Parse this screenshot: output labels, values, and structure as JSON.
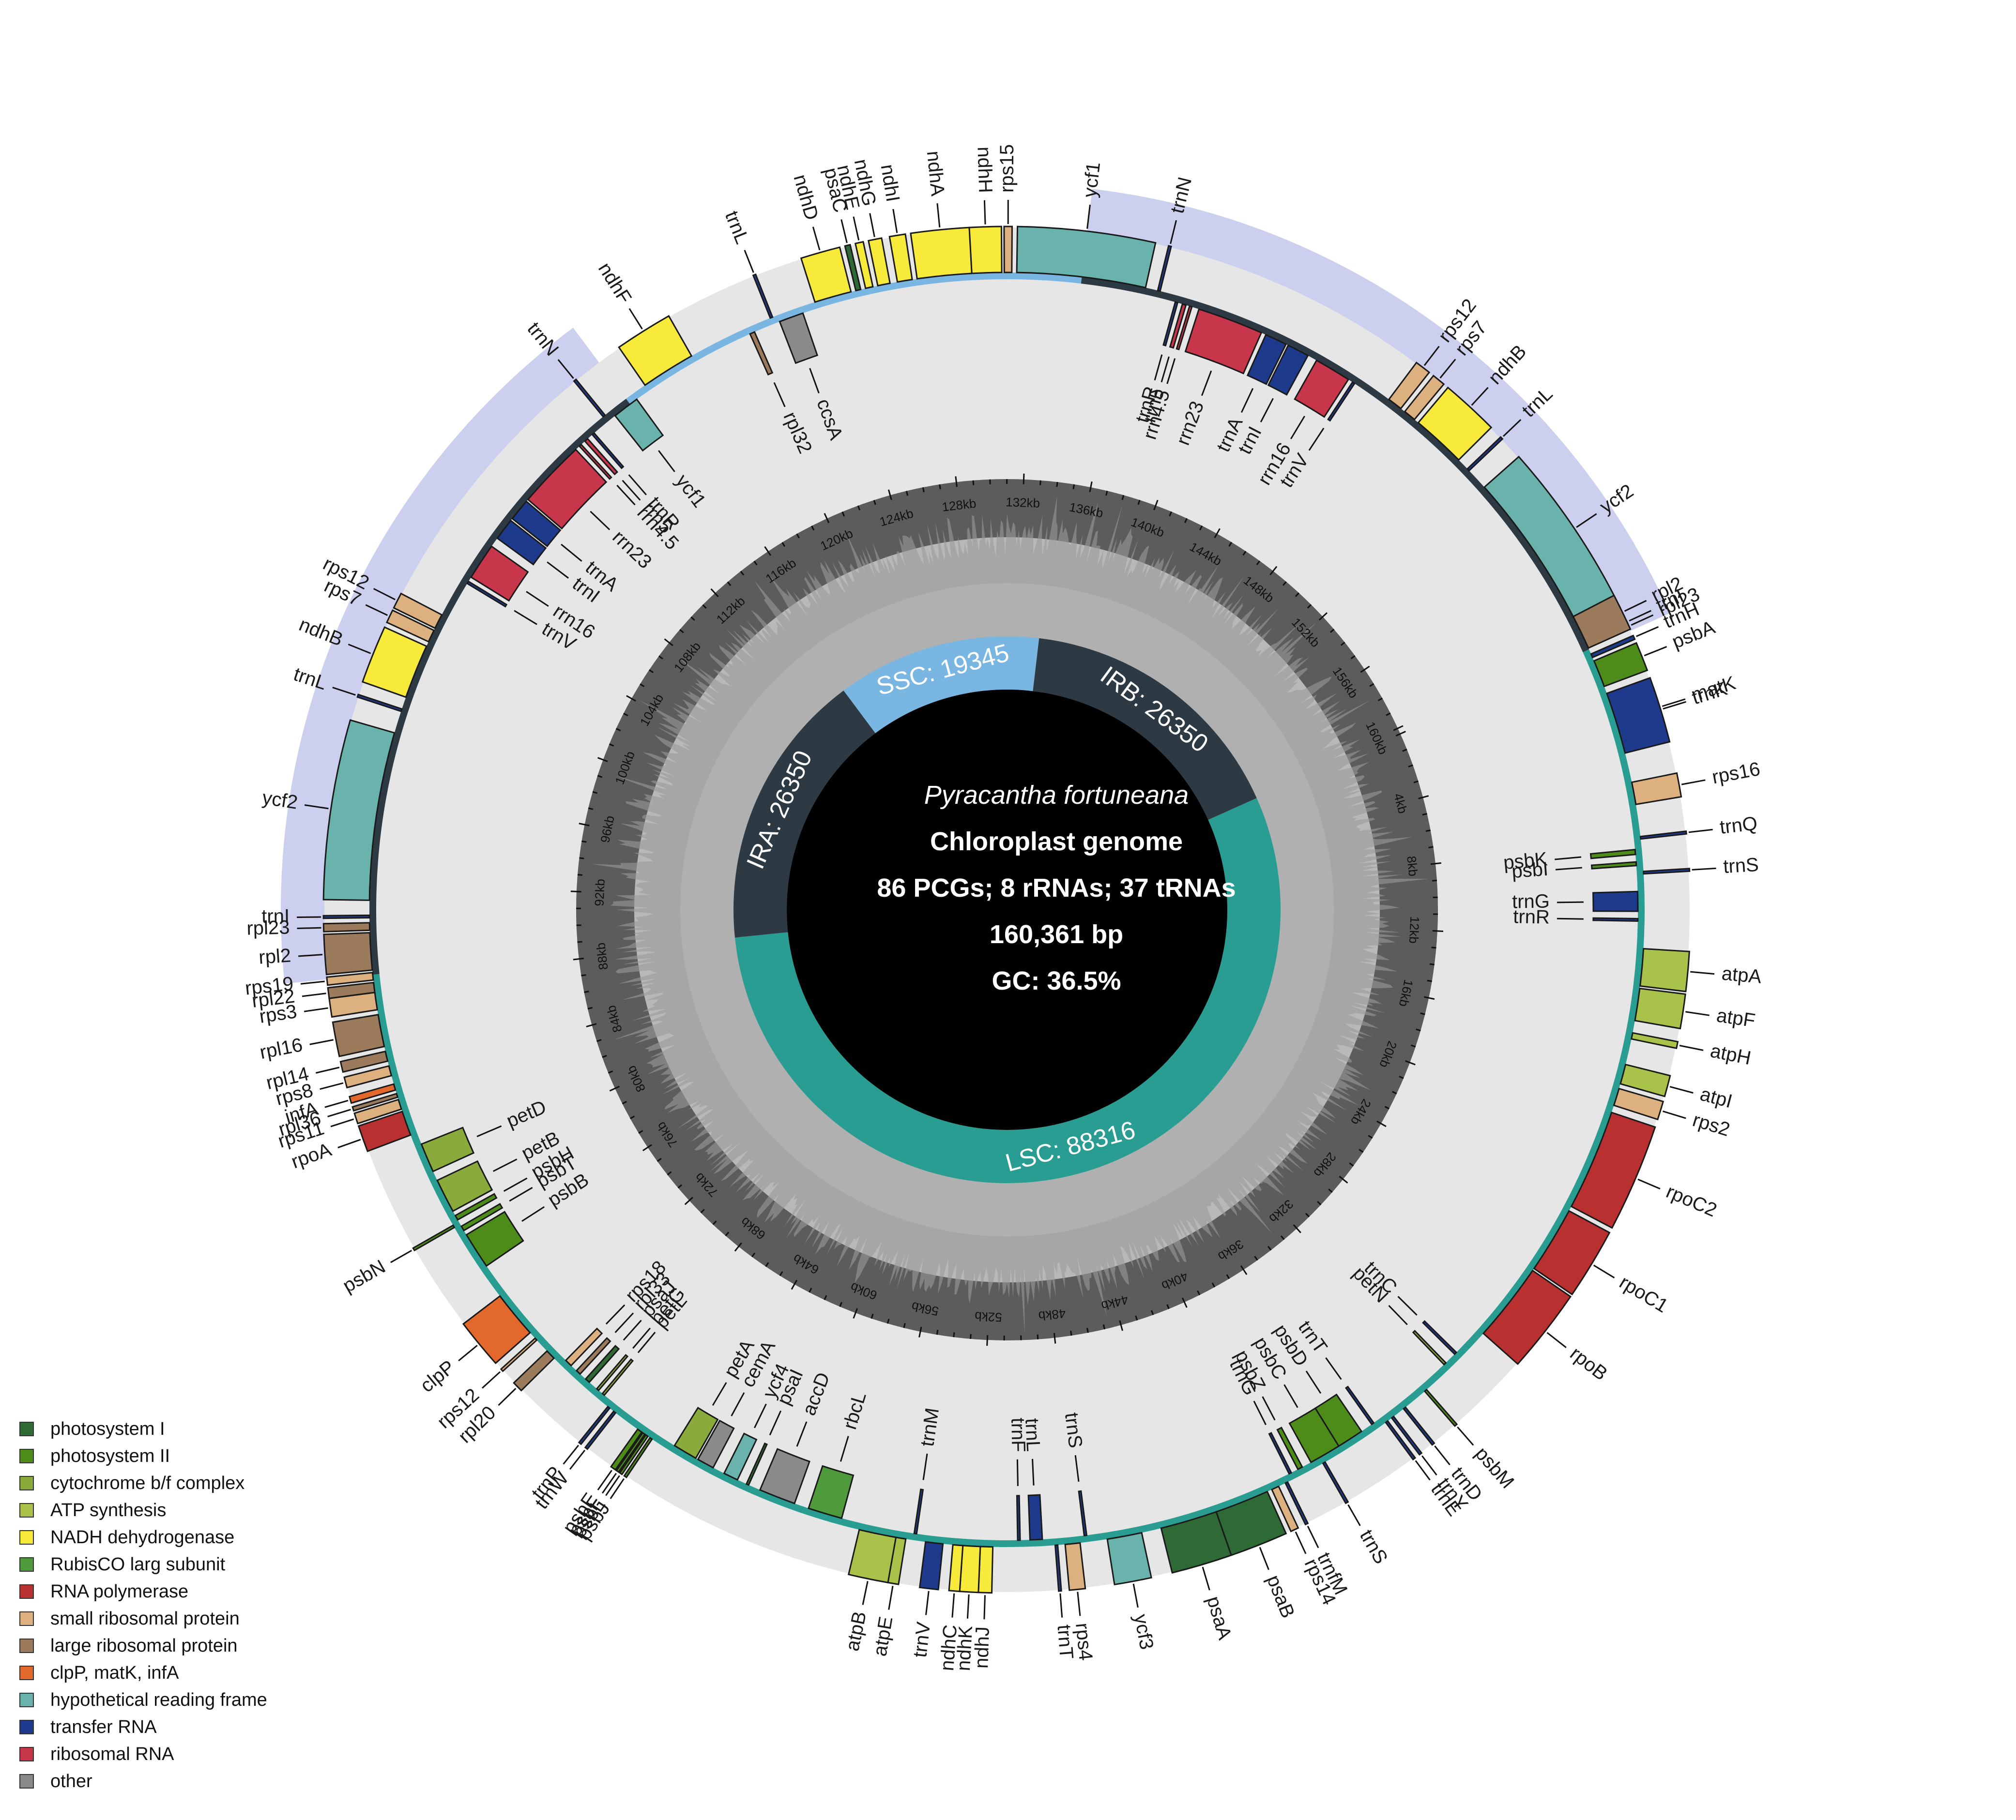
{
  "figure": {
    "species": "Pyracantha fortuneana",
    "genome_type": "Chloroplast genome",
    "gene_counts": "86 PCGs; 8 rRNAs; 37 tRNAs",
    "length": "160,361 bp",
    "gc": "GC: 36.5%"
  },
  "regions": [
    {
      "name": "LSC",
      "label": "LSC: 88316",
      "start": 0,
      "end": 88316,
      "color": "#2a9d93"
    },
    {
      "name": "IRA",
      "label": "IRA: 26350",
      "start": 88316,
      "end": 114666,
      "color": "#2d3a44"
    },
    {
      "name": "SSC",
      "label": "SSC: 19345",
      "start": 114666,
      "end": 134011,
      "color": "#7ab6e2"
    },
    {
      "name": "IRB",
      "label": "IRB: 26350",
      "start": 134011,
      "end": 160361,
      "color": "#2d3a44"
    }
  ],
  "ticks": [
    "4kb",
    "8kb",
    "12kb",
    "16kb",
    "20kb",
    "24kb",
    "28kb",
    "32kb",
    "36kb",
    "40kb",
    "44kb",
    "48kb",
    "52kb",
    "56kb",
    "60kb",
    "64kb",
    "68kb",
    "72kb",
    "76kb",
    "80kb",
    "84kb",
    "88kb",
    "92kb",
    "96kb",
    "100kb",
    "104kb",
    "108kb",
    "112kb",
    "116kb",
    "120kb",
    "124kb",
    "128kb",
    "132kb",
    "136kb",
    "140kb",
    "144kb",
    "148kb",
    "152kb",
    "156kb",
    "160kb"
  ],
  "genes": [
    {
      "name": "trnH",
      "start": 0.2,
      "end": 0.35,
      "cat": "transfer RNA",
      "side": "out"
    },
    {
      "name": "psbA",
      "start": 0.5,
      "end": 1.6,
      "cat": "photosystem II",
      "side": "out"
    },
    {
      "name": "matK",
      "start": 2.3,
      "end": 3.8,
      "cat": "clpP, matK, infA",
      "side": "out"
    },
    {
      "name": "trnK",
      "start": 1.9,
      "end": 4.4,
      "cat": "transfer RNA",
      "side": "out"
    },
    {
      "name": "rps16",
      "start": 5.6,
      "end": 6.5,
      "cat": "small ribosomal protein",
      "side": "out"
    },
    {
      "name": "trnQ",
      "start": 7.8,
      "end": 7.9,
      "cat": "transfer RNA",
      "side": "out"
    },
    {
      "name": "psbK",
      "start": 8.3,
      "end": 8.5,
      "cat": "photosystem II",
      "side": "in"
    },
    {
      "name": "psbI",
      "start": 8.8,
      "end": 8.95,
      "cat": "photosystem II",
      "side": "in"
    },
    {
      "name": "trnS",
      "start": 9.2,
      "end": 9.3,
      "cat": "transfer RNA",
      "side": "out"
    },
    {
      "name": "trnG",
      "start": 10.0,
      "end": 10.8,
      "cat": "transfer RNA",
      "side": "in"
    },
    {
      "name": "trnR",
      "start": 11.1,
      "end": 11.2,
      "cat": "transfer RNA",
      "side": "in"
    },
    {
      "name": "atpA",
      "start": 12.3,
      "end": 13.8,
      "cat": "ATP synthesis",
      "side": "out"
    },
    {
      "name": "atpF",
      "start": 13.9,
      "end": 15.2,
      "cat": "ATP synthesis",
      "side": "out"
    },
    {
      "name": "atpH",
      "start": 15.7,
      "end": 15.95,
      "cat": "ATP synthesis",
      "side": "out"
    },
    {
      "name": "atpI",
      "start": 17.0,
      "end": 17.8,
      "cat": "ATP synthesis",
      "side": "out"
    },
    {
      "name": "rps2",
      "start": 18.0,
      "end": 18.7,
      "cat": "small ribosomal protein",
      "side": "out"
    },
    {
      "name": "rpoC2",
      "start": 19.0,
      "end": 23.1,
      "cat": "RNA polymerase",
      "side": "out"
    },
    {
      "name": "rpoC1",
      "start": 23.3,
      "end": 26.0,
      "cat": "RNA polymerase",
      "side": "out"
    },
    {
      "name": "rpoB",
      "start": 26.1,
      "end": 29.3,
      "cat": "RNA polymerase",
      "side": "out"
    },
    {
      "name": "trnC",
      "start": 30.6,
      "end": 30.7,
      "cat": "transfer RNA",
      "side": "in"
    },
    {
      "name": "petN",
      "start": 31.2,
      "end": 31.3,
      "cat": "cytochrome b/f complex",
      "side": "in"
    },
    {
      "name": "psbM",
      "start": 32.5,
      "end": 32.6,
      "cat": "photosystem II",
      "side": "out"
    },
    {
      "name": "trnD",
      "start": 33.6,
      "end": 33.7,
      "cat": "transfer RNA",
      "side": "out"
    },
    {
      "name": "trnY",
      "start": 34.2,
      "end": 34.3,
      "cat": "transfer RNA",
      "side": "out"
    },
    {
      "name": "trnE",
      "start": 34.5,
      "end": 34.6,
      "cat": "transfer RNA",
      "side": "out"
    },
    {
      "name": "trnT",
      "start": 35.0,
      "end": 35.1,
      "cat": "transfer RNA",
      "side": "in"
    },
    {
      "name": "psbD",
      "start": 35.6,
      "end": 36.7,
      "cat": "photosystem II",
      "side": "in"
    },
    {
      "name": "psbC",
      "start": 36.7,
      "end": 38.0,
      "cat": "photosystem II",
      "side": "in"
    },
    {
      "name": "trnS",
      "start": 37.5,
      "end": 37.6,
      "cat": "transfer RNA",
      "side": "out"
    },
    {
      "name": "psbZ",
      "start": 38.4,
      "end": 38.6,
      "cat": "photosystem II",
      "side": "in"
    },
    {
      "name": "trnG",
      "start": 38.9,
      "end": 39.0,
      "cat": "transfer RNA",
      "side": "in"
    },
    {
      "name": "trnfM",
      "start": 39.2,
      "end": 39.3,
      "cat": "transfer RNA",
      "side": "out"
    },
    {
      "name": "rps14",
      "start": 39.6,
      "end": 39.9,
      "cat": "small ribosomal protein",
      "side": "out"
    },
    {
      "name": "psaB",
      "start": 40.1,
      "end": 42.3,
      "cat": "photosystem I",
      "side": "out"
    },
    {
      "name": "psaA",
      "start": 42.3,
      "end": 44.6,
      "cat": "photosystem I",
      "side": "out"
    },
    {
      "name": "ycf3",
      "start": 45.4,
      "end": 46.8,
      "cat": "hypothetical reading frame",
      "side": "out"
    },
    {
      "name": "trnS",
      "start": 47.6,
      "end": 47.7,
      "cat": "transfer RNA",
      "side": "in"
    },
    {
      "name": "rps4",
      "start": 47.9,
      "end": 48.5,
      "cat": "small ribosomal protein",
      "side": "out"
    },
    {
      "name": "trnT",
      "start": 48.8,
      "end": 48.9,
      "cat": "transfer RNA",
      "side": "out"
    },
    {
      "name": "trnL",
      "start": 49.4,
      "end": 49.9,
      "cat": "transfer RNA",
      "side": "in"
    },
    {
      "name": "trnF",
      "start": 50.3,
      "end": 50.4,
      "cat": "transfer RNA",
      "side": "in"
    },
    {
      "name": "ndhJ",
      "start": 51.4,
      "end": 51.9,
      "cat": "NADH dehydrogenase",
      "side": "out"
    },
    {
      "name": "ndhK",
      "start": 51.9,
      "end": 52.6,
      "cat": "NADH dehydrogenase",
      "side": "out"
    },
    {
      "name": "ndhC",
      "start": 52.6,
      "end": 53.0,
      "cat": "NADH dehydrogenase",
      "side": "out"
    },
    {
      "name": "trnV",
      "start": 53.4,
      "end": 54.1,
      "cat": "transfer RNA",
      "side": "out"
    },
    {
      "name": "trnM",
      "start": 54.5,
      "end": 54.6,
      "cat": "transfer RNA",
      "side": "in"
    },
    {
      "name": "atpE",
      "start": 54.9,
      "end": 55.3,
      "cat": "ATP synthesis",
      "side": "out"
    },
    {
      "name": "atpB",
      "start": 55.3,
      "end": 56.8,
      "cat": "ATP synthesis",
      "side": "out"
    },
    {
      "name": "rbcL",
      "start": 57.6,
      "end": 59.0,
      "cat": "RubisCO larg subunit",
      "side": "in"
    },
    {
      "name": "accD",
      "start": 59.6,
      "end": 61.1,
      "cat": "other",
      "side": "in"
    },
    {
      "name": "psaI",
      "start": 61.6,
      "end": 61.7,
      "cat": "photosystem I",
      "side": "in"
    },
    {
      "name": "ycf4",
      "start": 62.1,
      "end": 62.7,
      "cat": "hypothetical reading frame",
      "side": "in"
    },
    {
      "name": "cemA",
      "start": 63.2,
      "end": 63.9,
      "cat": "other",
      "side": "in"
    },
    {
      "name": "petA",
      "start": 64.0,
      "end": 65.0,
      "cat": "cytochrome b/f complex",
      "side": "in"
    },
    {
      "name": "psbJ",
      "start": 65.9,
      "end": 66.0,
      "cat": "photosystem II",
      "side": "out"
    },
    {
      "name": "psbL",
      "start": 66.1,
      "end": 66.2,
      "cat": "photosystem II",
      "side": "out"
    },
    {
      "name": "psbF",
      "start": 66.25,
      "end": 66.35,
      "cat": "photosystem II",
      "side": "out"
    },
    {
      "name": "psbE",
      "start": 66.4,
      "end": 66.6,
      "cat": "photosystem II",
      "side": "out"
    },
    {
      "name": "trnW",
      "start": 67.7,
      "end": 67.8,
      "cat": "transfer RNA",
      "side": "out"
    },
    {
      "name": "trnP",
      "start": 68.0,
      "end": 68.1,
      "cat": "transfer RNA",
      "side": "out"
    },
    {
      "name": "petL",
      "start": 68.5,
      "end": 68.6,
      "cat": "cytochrome b/f complex",
      "side": "in"
    },
    {
      "name": "petG",
      "start": 68.8,
      "end": 68.9,
      "cat": "cytochrome b/f complex",
      "side": "in"
    },
    {
      "name": "psaJ",
      "start": 69.3,
      "end": 69.5,
      "cat": "photosystem I",
      "side": "in"
    },
    {
      "name": "rpl33",
      "start": 69.8,
      "end": 70.0,
      "cat": "large ribosomal protein",
      "side": "in"
    },
    {
      "name": "rps18",
      "start": 70.3,
      "end": 70.6,
      "cat": "small ribosomal protein",
      "side": "in"
    },
    {
      "name": "rpl20",
      "start": 71.0,
      "end": 71.4,
      "cat": "large ribosomal protein",
      "side": "out"
    },
    {
      "name": "rps12",
      "start": 72.0,
      "end": 72.1,
      "cat": "small ribosomal protein",
      "side": "out"
    },
    {
      "name": "clpP",
      "start": 72.4,
      "end": 74.3,
      "cat": "clpP, matK, infA",
      "side": "out"
    },
    {
      "name": "psbB",
      "start": 75.6,
      "end": 77.1,
      "cat": "photosystem II",
      "side": "in"
    },
    {
      "name": "psbN",
      "start": 77.6,
      "end": 77.7,
      "cat": "photosystem II",
      "side": "out"
    },
    {
      "name": "psbT",
      "start": 77.3,
      "end": 77.5,
      "cat": "photosystem II",
      "side": "in"
    },
    {
      "name": "psbH",
      "start": 77.8,
      "end": 78.0,
      "cat": "photosystem II",
      "side": "in"
    },
    {
      "name": "petB",
      "start": 78.2,
      "end": 79.6,
      "cat": "cytochrome b/f complex",
      "side": "in"
    },
    {
      "name": "petD",
      "start": 80.0,
      "end": 81.2,
      "cat": "cytochrome b/f complex",
      "side": "in"
    },
    {
      "name": "rpoA",
      "start": 81.7,
      "end": 82.7,
      "cat": "RNA polymerase",
      "side": "out"
    },
    {
      "name": "rps11",
      "start": 82.8,
      "end": 83.2,
      "cat": "small ribosomal protein",
      "side": "out"
    },
    {
      "name": "rpl36",
      "start": 83.3,
      "end": 83.45,
      "cat": "large ribosomal protein",
      "side": "out"
    },
    {
      "name": "infA",
      "start": 83.6,
      "end": 83.85,
      "cat": "clpP, matK, infA",
      "side": "out"
    },
    {
      "name": "rps8",
      "start": 84.2,
      "end": 84.6,
      "cat": "small ribosomal protein",
      "side": "out"
    },
    {
      "name": "rpl14",
      "start": 84.8,
      "end": 85.2,
      "cat": "large ribosomal protein",
      "side": "out"
    },
    {
      "name": "rpl16",
      "start": 85.4,
      "end": 86.7,
      "cat": "large ribosomal protein",
      "side": "out"
    },
    {
      "name": "rps3",
      "start": 86.9,
      "end": 87.6,
      "cat": "small ribosomal protein",
      "side": "out"
    },
    {
      "name": "rpl22",
      "start": 87.6,
      "end": 88.0,
      "cat": "large ribosomal protein",
      "side": "out"
    },
    {
      "name": "rps19",
      "start": 88.1,
      "end": 88.4,
      "cat": "small ribosomal protein",
      "side": "out"
    },
    {
      "name": "rpl2",
      "start": 88.5,
      "end": 90.0,
      "cat": "large ribosomal protein",
      "side": "out"
    },
    {
      "name": "rpl23",
      "start": 90.1,
      "end": 90.4,
      "cat": "large ribosomal protein",
      "side": "out"
    },
    {
      "name": "trnI",
      "start": 90.6,
      "end": 90.7,
      "cat": "transfer RNA",
      "side": "out"
    },
    {
      "name": "ycf2",
      "start": 91.3,
      "end": 98.1,
      "cat": "hypothetical reading frame",
      "side": "out"
    },
    {
      "name": "trnL",
      "start": 99.0,
      "end": 99.1,
      "cat": "transfer RNA",
      "side": "out"
    },
    {
      "name": "ndhB",
      "start": 99.6,
      "end": 101.8,
      "cat": "NADH dehydrogenase",
      "side": "out"
    },
    {
      "name": "rps7",
      "start": 102.0,
      "end": 102.5,
      "cat": "small ribosomal protein",
      "side": "out"
    },
    {
      "name": "rps12",
      "start": 102.6,
      "end": 103.2,
      "cat": "small ribosomal protein",
      "side": "out"
    },
    {
      "name": "trnV",
      "start": 104.8,
      "end": 104.9,
      "cat": "transfer RNA",
      "side": "in"
    },
    {
      "name": "rrn16",
      "start": 105.1,
      "end": 106.6,
      "cat": "ribosomal RNA",
      "side": "in"
    },
    {
      "name": "trnI",
      "start": 107.0,
      "end": 107.9,
      "cat": "transfer RNA",
      "side": "in"
    },
    {
      "name": "trnA",
      "start": 108.0,
      "end": 108.9,
      "cat": "transfer RNA",
      "side": "in"
    },
    {
      "name": "rrn23",
      "start": 109.0,
      "end": 111.8,
      "cat": "ribosomal RNA",
      "side": "in"
    },
    {
      "name": "rrn4.5",
      "start": 112.0,
      "end": 112.1,
      "cat": "ribosomal RNA",
      "side": "in"
    },
    {
      "name": "rrn5",
      "start": 112.3,
      "end": 112.45,
      "cat": "ribosomal RNA",
      "side": "in"
    },
    {
      "name": "trnR",
      "start": 112.7,
      "end": 112.8,
      "cat": "transfer RNA",
      "side": "in"
    },
    {
      "name": "trnN",
      "start": 113.5,
      "end": 113.6,
      "cat": "transfer RNA",
      "side": "out"
    },
    {
      "name": "ycf1",
      "start": 113.9,
      "end": 115.0,
      "cat": "hypothetical reading frame",
      "side": "in"
    },
    {
      "name": "ndhF",
      "start": 115.6,
      "end": 117.8,
      "cat": "NADH dehydrogenase",
      "side": "out"
    },
    {
      "name": "rpl32",
      "start": 120.3,
      "end": 120.5,
      "cat": "large ribosomal protein",
      "side": "in"
    },
    {
      "name": "trnL",
      "start": 121.3,
      "end": 121.4,
      "cat": "transfer RNA",
      "side": "out"
    },
    {
      "name": "ccsA",
      "start": 121.6,
      "end": 122.6,
      "cat": "other",
      "side": "in"
    },
    {
      "name": "ndhD",
      "start": 123.2,
      "end": 124.7,
      "cat": "NADH dehydrogenase",
      "side": "out"
    },
    {
      "name": "psaC",
      "start": 124.9,
      "end": 125.1,
      "cat": "photosystem I",
      "side": "out"
    },
    {
      "name": "ndhE",
      "start": 125.3,
      "end": 125.6,
      "cat": "NADH dehydrogenase",
      "side": "out"
    },
    {
      "name": "ndhG",
      "start": 125.8,
      "end": 126.3,
      "cat": "NADH dehydrogenase",
      "side": "out"
    },
    {
      "name": "ndhI",
      "start": 126.6,
      "end": 127.2,
      "cat": "NADH dehydrogenase",
      "side": "out"
    },
    {
      "name": "ndhA",
      "start": 127.4,
      "end": 129.6,
      "cat": "NADH dehydrogenase",
      "side": "out"
    },
    {
      "name": "ndhH",
      "start": 129.6,
      "end": 130.8,
      "cat": "NADH dehydrogenase",
      "side": "out"
    },
    {
      "name": "rps15",
      "start": 130.9,
      "end": 131.2,
      "cat": "small ribosomal protein",
      "side": "out"
    },
    {
      "name": "ycf1",
      "start": 131.4,
      "end": 136.6,
      "cat": "hypothetical reading frame",
      "side": "out"
    },
    {
      "name": "trnN",
      "start": 137.1,
      "end": 137.2,
      "cat": "transfer RNA",
      "side": "out"
    },
    {
      "name": "trnR",
      "start": 137.9,
      "end": 138.0,
      "cat": "transfer RNA",
      "side": "in"
    },
    {
      "name": "rrn5",
      "start": 138.2,
      "end": 138.35,
      "cat": "ribosomal RNA",
      "side": "in"
    },
    {
      "name": "rrn4.5",
      "start": 138.5,
      "end": 138.6,
      "cat": "ribosomal RNA",
      "side": "in"
    },
    {
      "name": "rrn23",
      "start": 138.9,
      "end": 141.6,
      "cat": "ribosomal RNA",
      "side": "in"
    },
    {
      "name": "trnA",
      "start": 141.8,
      "end": 142.7,
      "cat": "transfer RNA",
      "side": "in"
    },
    {
      "name": "trnI",
      "start": 142.8,
      "end": 143.7,
      "cat": "transfer RNA",
      "side": "in"
    },
    {
      "name": "rrn16",
      "start": 144.1,
      "end": 145.6,
      "cat": "ribosomal RNA",
      "side": "in"
    },
    {
      "name": "trnV",
      "start": 145.8,
      "end": 145.9,
      "cat": "transfer RNA",
      "side": "in"
    },
    {
      "name": "rps12",
      "start": 147.4,
      "end": 148.0,
      "cat": "small ribosomal protein",
      "side": "out"
    },
    {
      "name": "rps7",
      "start": 148.2,
      "end": 148.7,
      "cat": "small ribosomal protein",
      "side": "out"
    },
    {
      "name": "ndhB",
      "start": 148.9,
      "end": 151.1,
      "cat": "NADH dehydrogenase",
      "side": "out"
    },
    {
      "name": "trnL",
      "start": 151.6,
      "end": 151.7,
      "cat": "transfer RNA",
      "side": "out"
    },
    {
      "name": "ycf2",
      "start": 152.6,
      "end": 159.4,
      "cat": "hypothetical reading frame",
      "side": "out"
    },
    {
      "name": "trnI",
      "start": 159.95,
      "end": 160.05,
      "cat": "transfer RNA",
      "side": "out"
    },
    {
      "name": "rpl23",
      "start": 160.1,
      "end": 160.25,
      "cat": "large ribosomal protein",
      "side": "out"
    },
    {
      "name": "rpl2",
      "start": 158.9,
      "end": 160.3,
      "cat": "large ribosomal protein",
      "side": "out"
    }
  ],
  "legend": [
    {
      "label": "photosystem I",
      "color": "#2d6a35"
    },
    {
      "label": "photosystem II",
      "color": "#4e8c1a"
    },
    {
      "label": "cytochrome b/f complex",
      "color": "#8aaa3c"
    },
    {
      "label": "ATP synthesis",
      "color": "#a8c24a"
    },
    {
      "label": "NADH dehydrogenase",
      "color": "#f7ea3a"
    },
    {
      "label": "RubisCO larg subunit",
      "color": "#4f9a3b"
    },
    {
      "label": "RNA polymerase",
      "color": "#b8302f"
    },
    {
      "label": "small ribosomal protein",
      "color": "#dcb07f"
    },
    {
      "label": "large ribosomal protein",
      "color": "#9c7a5c"
    },
    {
      "label": "clpP, matK, infA",
      "color": "#e2682c"
    },
    {
      "label": "hypothetical reading frame",
      "color": "#6ab3ac"
    },
    {
      "label": "transfer RNA",
      "color": "#1e3a8c"
    },
    {
      "label": "ribosomal RNA",
      "color": "#c8364b"
    },
    {
      "label": "other",
      "color": "#8a8a8a"
    }
  ]
}
